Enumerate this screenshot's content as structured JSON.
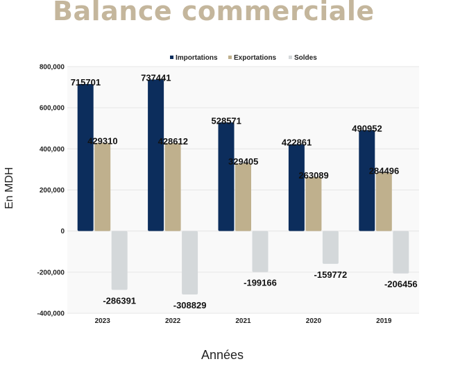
{
  "chart_data": {
    "type": "bar",
    "title": "Balance commerciale",
    "xlabel": "Années",
    "ylabel": "En MDH",
    "categories": [
      "2023",
      "2022",
      "2021",
      "2020",
      "2019"
    ],
    "series": [
      {
        "name": "Importations",
        "color": "#0c2d5c",
        "values": [
          715701,
          737441,
          528571,
          422861,
          490952
        ]
      },
      {
        "name": "Exportations",
        "color": "#bfb08d",
        "values": [
          429310,
          428612,
          329405,
          263089,
          284496
        ]
      },
      {
        "name": "Soldes",
        "color": "#d4d8da",
        "values": [
          -286391,
          -308829,
          -199166,
          -159772,
          -206456
        ]
      }
    ],
    "y_ticks": [
      "800,000",
      "600,000",
      "400,000",
      "200,000",
      "0",
      "-200,000",
      "-400,000"
    ],
    "ylim": [
      -400000,
      800000
    ],
    "grid": true,
    "legend_position": "top"
  }
}
